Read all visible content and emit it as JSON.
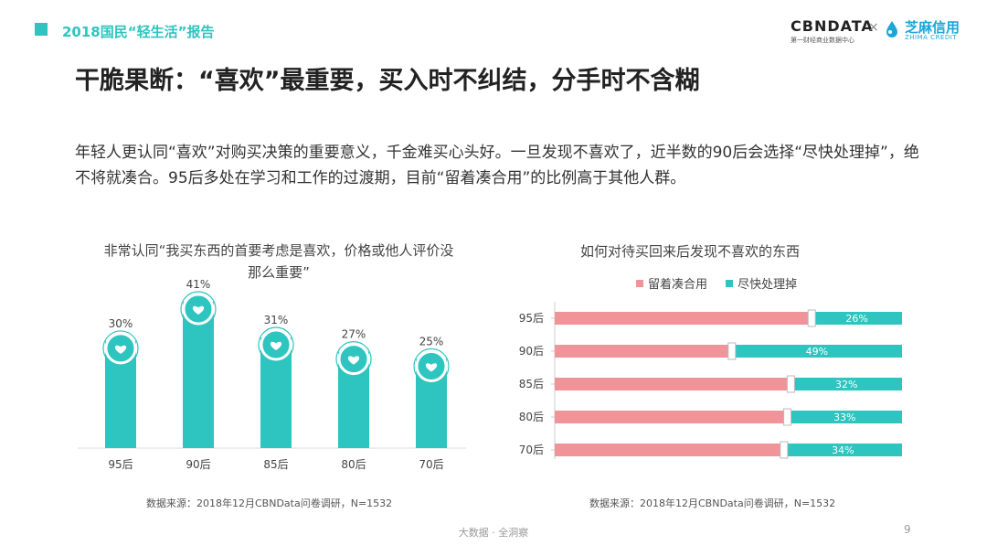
{
  "header": {
    "title": "2018国民“轻生活”报告"
  },
  "logos": {
    "cbn_main": "CBNDATA",
    "cbn_sub": "第一财经商业数据中心",
    "times": "×",
    "zhima_main": "芝麻信用",
    "zhima_sub": "ZHIMA CREDIT"
  },
  "page_title": "干脆果断：“喜欢”最重要，买入时不纠结，分手时不含糊",
  "intro": "年轻人更认同“喜欢”对购买决策的重要意义，千金难买心头好。一旦发现不喜欢了，近半数的90后会选择“尽快处理掉”，绝不将就凑合。95后多处在学习和工作的过渡期，目前“留着凑合用”的比例高于其他人群。",
  "chart_data": [
    {
      "type": "bar",
      "title": "非常认同“我买东西的首要考虑是喜欢，价格或他人评价没那么重要”",
      "categories": [
        "95后",
        "90后",
        "85后",
        "80后",
        "70后"
      ],
      "values": [
        30,
        41,
        31,
        27,
        25
      ],
      "value_labels": [
        "30%",
        "41%",
        "31%",
        "27%",
        "25%"
      ],
      "unit": "%",
      "color": "#2ec4c0",
      "marker_icon": "heart-icon",
      "source": "数据来源：2018年12月CBNData问卷调研，N=1532"
    },
    {
      "type": "bar",
      "orientation": "horizontal",
      "stacked": true,
      "title": "如何对待买回来后发现不喜欢的东西",
      "categories": [
        "95后",
        "90后",
        "85后",
        "80后",
        "70后"
      ],
      "series": [
        {
          "name": "留着凑合用",
          "color": "#f0949a",
          "values": [
            74,
            51,
            68,
            67,
            66
          ]
        },
        {
          "name": "尽快处理掉",
          "color": "#2ec4c0",
          "values": [
            26,
            49,
            32,
            33,
            34
          ],
          "labels": [
            "26%",
            "49%",
            "32%",
            "33%",
            "34%"
          ]
        }
      ],
      "xlim": [
        0,
        100
      ],
      "legend_position": "top",
      "source": "数据来源：2018年12月CBNData问卷调研，N=1532"
    }
  ],
  "footer": {
    "text": "大数据 · 全洞察",
    "page_number": "9"
  }
}
